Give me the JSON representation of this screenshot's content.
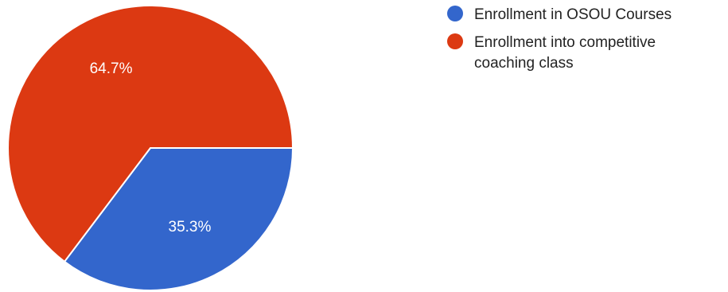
{
  "chart_data": {
    "type": "pie",
    "categories": [
      "Enrollment in OSOU Courses",
      "Enrollment into competitive coaching class"
    ],
    "values": [
      35.3,
      64.7
    ],
    "labels": [
      "35.3%",
      "64.7%"
    ],
    "colors": [
      "#3366cc",
      "#dc3912"
    ],
    "legend_position": "right"
  }
}
